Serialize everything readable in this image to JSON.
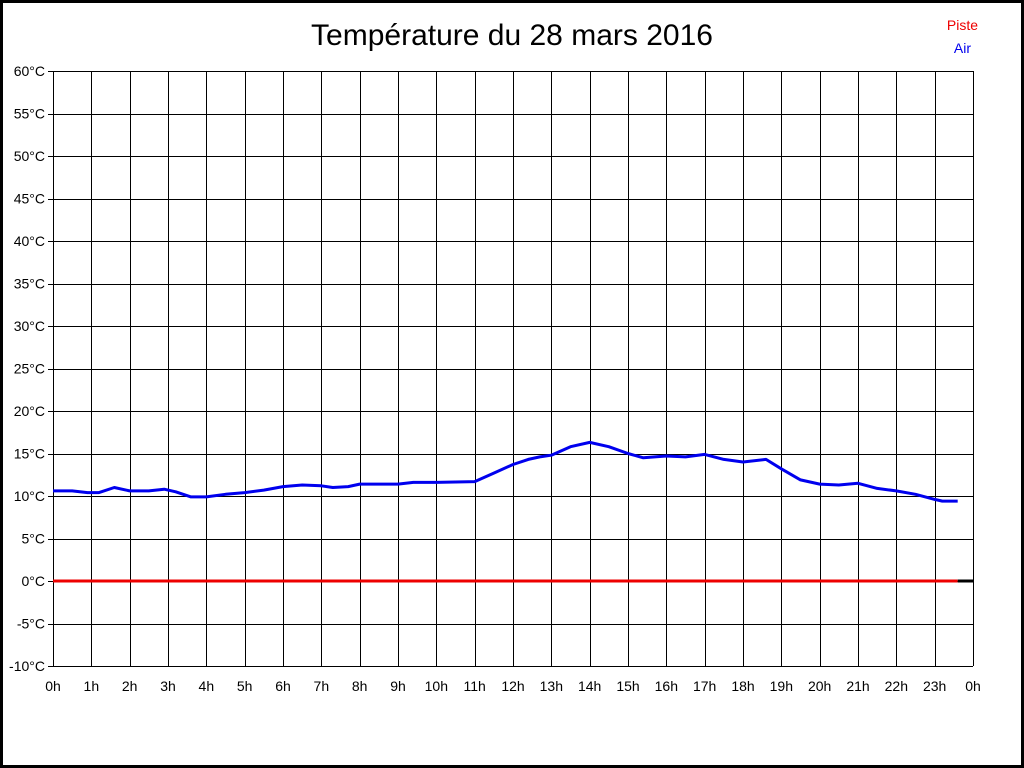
{
  "window": {
    "background": "#ffffff",
    "border_color": "#000000"
  },
  "chart_data": {
    "type": "line",
    "title": "Température du 28 mars 2016",
    "xlabel": "",
    "ylabel": "",
    "xlim": [
      0,
      24
    ],
    "ylim": [
      -10,
      60
    ],
    "grid": true,
    "grid_color": "#000000",
    "axis_label_color": "#000000",
    "x_ticks": [
      {
        "value": 0,
        "label": "0h"
      },
      {
        "value": 1,
        "label": "1h"
      },
      {
        "value": 2,
        "label": "2h"
      },
      {
        "value": 3,
        "label": "3h"
      },
      {
        "value": 4,
        "label": "4h"
      },
      {
        "value": 5,
        "label": "5h"
      },
      {
        "value": 6,
        "label": "6h"
      },
      {
        "value": 7,
        "label": "7h"
      },
      {
        "value": 8,
        "label": "8h"
      },
      {
        "value": 9,
        "label": "9h"
      },
      {
        "value": 10,
        "label": "10h"
      },
      {
        "value": 11,
        "label": "11h"
      },
      {
        "value": 12,
        "label": "12h"
      },
      {
        "value": 13,
        "label": "13h"
      },
      {
        "value": 14,
        "label": "14h"
      },
      {
        "value": 15,
        "label": "15h"
      },
      {
        "value": 16,
        "label": "16h"
      },
      {
        "value": 17,
        "label": "17h"
      },
      {
        "value": 18,
        "label": "18h"
      },
      {
        "value": 19,
        "label": "19h"
      },
      {
        "value": 20,
        "label": "20h"
      },
      {
        "value": 21,
        "label": "21h"
      },
      {
        "value": 22,
        "label": "22h"
      },
      {
        "value": 23,
        "label": "23h"
      },
      {
        "value": 24,
        "label": "0h"
      }
    ],
    "y_ticks": [
      {
        "value": 60,
        "label": "60°C"
      },
      {
        "value": 55,
        "label": "55°C"
      },
      {
        "value": 50,
        "label": "50°C"
      },
      {
        "value": 45,
        "label": "45°C"
      },
      {
        "value": 40,
        "label": "40°C"
      },
      {
        "value": 35,
        "label": "35°C"
      },
      {
        "value": 30,
        "label": "30°C"
      },
      {
        "value": 25,
        "label": "25°C"
      },
      {
        "value": 20,
        "label": "20°C"
      },
      {
        "value": 15,
        "label": "15°C"
      },
      {
        "value": 10,
        "label": "10°C"
      },
      {
        "value": 5,
        "label": "5°C"
      },
      {
        "value": 0,
        "label": "0°C"
      },
      {
        "value": -5,
        "label": "-5°C"
      },
      {
        "value": -10,
        "label": "-10°C"
      }
    ],
    "legend": {
      "position": "top-right",
      "items": [
        {
          "name": "Piste",
          "color": "#ee0000"
        },
        {
          "name": "Air",
          "color": "#0000ee"
        }
      ]
    },
    "series": [
      {
        "name": "Piste",
        "color": "#ee0000",
        "line_width": 3,
        "points": [
          [
            0,
            0
          ],
          [
            23.6,
            0
          ]
        ]
      },
      {
        "name": "Air",
        "color": "#0000ee",
        "line_width": 3,
        "points": [
          [
            0,
            10.6
          ],
          [
            0.5,
            10.6
          ],
          [
            0.9,
            10.4
          ],
          [
            1.2,
            10.4
          ],
          [
            1.6,
            11.0
          ],
          [
            2.0,
            10.6
          ],
          [
            2.5,
            10.6
          ],
          [
            2.9,
            10.8
          ],
          [
            3.2,
            10.5
          ],
          [
            3.6,
            9.9
          ],
          [
            4.0,
            9.9
          ],
          [
            4.5,
            10.2
          ],
          [
            5.0,
            10.4
          ],
          [
            5.5,
            10.7
          ],
          [
            6.0,
            11.1
          ],
          [
            6.5,
            11.3
          ],
          [
            7.0,
            11.2
          ],
          [
            7.3,
            11.0
          ],
          [
            7.7,
            11.1
          ],
          [
            8.0,
            11.4
          ],
          [
            9.0,
            11.4
          ],
          [
            9.4,
            11.6
          ],
          [
            10.0,
            11.6
          ],
          [
            11.0,
            11.7
          ],
          [
            11.5,
            12.7
          ],
          [
            12.0,
            13.7
          ],
          [
            12.4,
            14.3
          ],
          [
            12.7,
            14.6
          ],
          [
            13.0,
            14.8
          ],
          [
            13.5,
            15.8
          ],
          [
            14.0,
            16.3
          ],
          [
            14.5,
            15.8
          ],
          [
            15.0,
            15.0
          ],
          [
            15.4,
            14.5
          ],
          [
            16.0,
            14.7
          ],
          [
            16.5,
            14.6
          ],
          [
            17.0,
            14.9
          ],
          [
            17.5,
            14.3
          ],
          [
            18.0,
            14.0
          ],
          [
            18.6,
            14.3
          ],
          [
            19.0,
            13.2
          ],
          [
            19.5,
            11.9
          ],
          [
            20.0,
            11.4
          ],
          [
            20.5,
            11.3
          ],
          [
            21.0,
            11.5
          ],
          [
            21.5,
            10.9
          ],
          [
            22.0,
            10.6
          ],
          [
            22.5,
            10.2
          ],
          [
            23.0,
            9.6
          ],
          [
            23.2,
            9.4
          ],
          [
            23.6,
            9.4
          ]
        ]
      },
      {
        "name": "baseline-tail",
        "color": "#000000",
        "line_width": 3,
        "points": [
          [
            23.6,
            0
          ],
          [
            24,
            0
          ]
        ]
      }
    ]
  }
}
